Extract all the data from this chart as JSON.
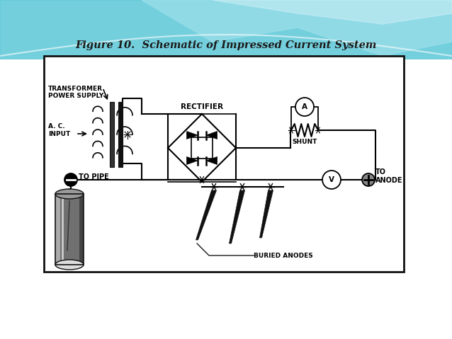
{
  "title": "Figure 10.  Schematic of Impressed Current System",
  "bg_color": "#f0fbff",
  "wave1_color": "#5ec8d8",
  "wave2_color": "#9de0ea",
  "wave3_color": "#c8eef5",
  "box_bg": "#ffffff",
  "box_edge": "#222222",
  "diagram_bg": "#ffffff",
  "labels": {
    "transformer": "TRANSFORMER\nPOWER SUPPLY",
    "ac_input": "A. C.\nINPUT",
    "rectifier": "RECTIFIER",
    "shunt": "SHUNT",
    "to_pipe": "TO PIPE",
    "to_anode": "TO\nANODE",
    "buried_anodes": "BURIED ANODES"
  },
  "fig_w": 6.38,
  "fig_h": 4.79,
  "dpi": 100
}
